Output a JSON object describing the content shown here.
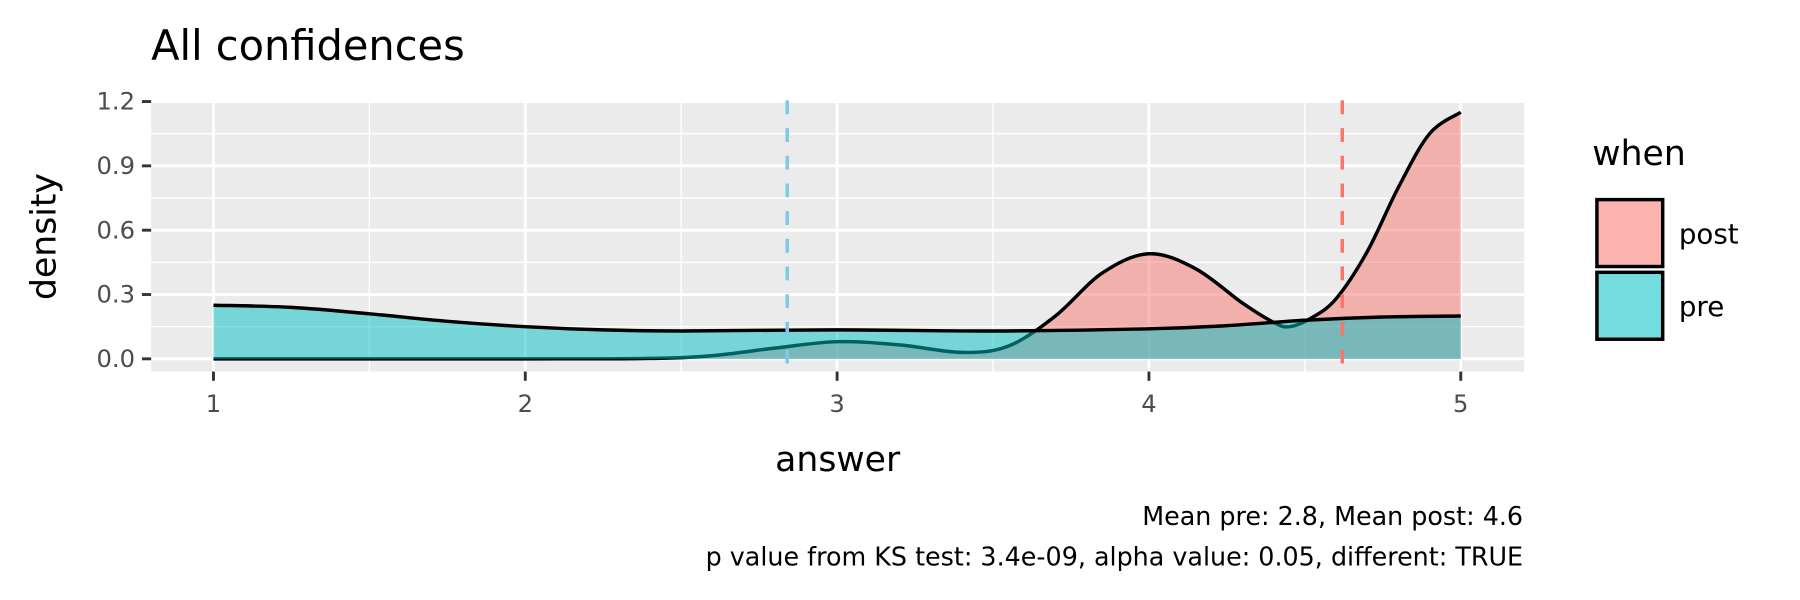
{
  "chart_data": {
    "type": "area",
    "title": "All confidences",
    "xlabel": "answer",
    "ylabel": "density",
    "xlim": [
      0.8,
      5.2
    ],
    "ylim": [
      -0.04,
      1.2
    ],
    "x_ticks": [
      "1",
      "2",
      "3",
      "4",
      "5"
    ],
    "y_ticks": [
      "0.0",
      "0.3",
      "0.6",
      "0.9",
      "1.2"
    ],
    "grid": true,
    "legend": {
      "title": "when",
      "placement": "right",
      "entries": [
        "post",
        "pre"
      ]
    },
    "series": [
      {
        "name": "post",
        "color": "#F8766D",
        "x": [
          1.0,
          1.5,
          2.0,
          2.4,
          2.6,
          2.8,
          3.0,
          3.2,
          3.4,
          3.55,
          3.7,
          3.85,
          4.0,
          4.15,
          4.3,
          4.4,
          4.45,
          4.52,
          4.6,
          4.7,
          4.8,
          4.9,
          5.0
        ],
        "y": [
          0.0,
          0.0,
          0.0,
          0.002,
          0.015,
          0.05,
          0.08,
          0.065,
          0.03,
          0.06,
          0.2,
          0.4,
          0.49,
          0.42,
          0.26,
          0.17,
          0.15,
          0.19,
          0.28,
          0.5,
          0.8,
          1.05,
          1.15
        ]
      },
      {
        "name": "pre",
        "color": "#00BFC4",
        "x": [
          1.0,
          1.25,
          1.5,
          1.75,
          2.0,
          2.25,
          2.5,
          3.0,
          3.5,
          4.0,
          4.25,
          4.5,
          4.75,
          5.0
        ],
        "y": [
          0.25,
          0.24,
          0.21,
          0.175,
          0.15,
          0.135,
          0.13,
          0.135,
          0.13,
          0.14,
          0.155,
          0.18,
          0.195,
          0.2
        ]
      }
    ],
    "mean_lines": [
      {
        "name": "pre",
        "x": 2.84,
        "color": "#7FC8EA"
      },
      {
        "name": "post",
        "x": 4.62,
        "color": "#F8766D"
      }
    ],
    "caption": [
      "Mean pre: 2.8, Mean post: 4.6",
      "p value from KS test: 3.4e-09, alpha value: 0.05, different: TRUE"
    ]
  }
}
